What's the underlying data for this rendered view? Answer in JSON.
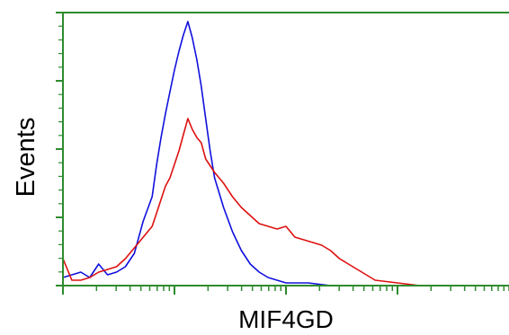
{
  "chart_data": {
    "type": "line",
    "title": "",
    "xlabel": "MIF4GD",
    "ylabel": "Events",
    "x_scale": "log",
    "xlim": [
      0,
      1
    ],
    "ylim": [
      0,
      1
    ],
    "grid": false,
    "legend": "none",
    "colors": {
      "frame": "#2e8b2e",
      "ticks": "#2e8b2e",
      "background": "#ffffff"
    },
    "series": [
      {
        "color": "#1010dd",
        "x": [
          0.0,
          0.02,
          0.04,
          0.06,
          0.08,
          0.1,
          0.12,
          0.14,
          0.16,
          0.18,
          0.2,
          0.21,
          0.22,
          0.23,
          0.24,
          0.25,
          0.26,
          0.27,
          0.28,
          0.29,
          0.3,
          0.31,
          0.32,
          0.33,
          0.34,
          0.36,
          0.38,
          0.4,
          0.42,
          0.44,
          0.46,
          0.48,
          0.5,
          0.55,
          0.6
        ],
        "values": [
          0.03,
          0.04,
          0.05,
          0.03,
          0.08,
          0.04,
          0.05,
          0.07,
          0.12,
          0.24,
          0.33,
          0.45,
          0.55,
          0.64,
          0.72,
          0.8,
          0.87,
          0.93,
          0.98,
          0.92,
          0.84,
          0.74,
          0.62,
          0.5,
          0.4,
          0.29,
          0.2,
          0.13,
          0.08,
          0.05,
          0.03,
          0.02,
          0.01,
          0.01,
          0.0
        ]
      },
      {
        "color": "#dd1010",
        "x": [
          0.0,
          0.02,
          0.04,
          0.06,
          0.08,
          0.1,
          0.12,
          0.14,
          0.16,
          0.18,
          0.2,
          0.21,
          0.22,
          0.23,
          0.24,
          0.25,
          0.26,
          0.27,
          0.28,
          0.29,
          0.3,
          0.31,
          0.32,
          0.34,
          0.36,
          0.38,
          0.4,
          0.42,
          0.44,
          0.46,
          0.48,
          0.5,
          0.52,
          0.54,
          0.56,
          0.58,
          0.6,
          0.62,
          0.64,
          0.66,
          0.68,
          0.7,
          0.75,
          0.8
        ],
        "values": [
          0.1,
          0.02,
          0.02,
          0.03,
          0.05,
          0.06,
          0.07,
          0.1,
          0.14,
          0.18,
          0.22,
          0.27,
          0.32,
          0.37,
          0.4,
          0.45,
          0.5,
          0.56,
          0.62,
          0.58,
          0.55,
          0.53,
          0.47,
          0.42,
          0.38,
          0.33,
          0.29,
          0.26,
          0.23,
          0.22,
          0.21,
          0.22,
          0.18,
          0.17,
          0.16,
          0.15,
          0.13,
          0.1,
          0.08,
          0.06,
          0.04,
          0.02,
          0.01,
          0.0
        ]
      }
    ]
  }
}
